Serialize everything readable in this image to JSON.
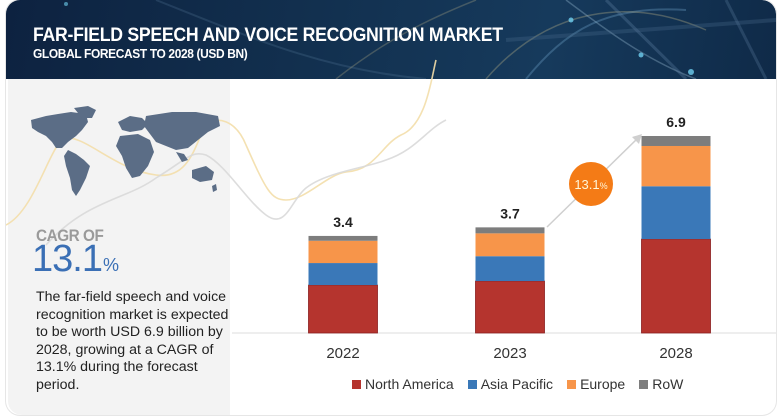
{
  "header": {
    "title": "FAR-FIELD SPEECH AND VOICE RECOGNITION MARKET",
    "subtitle": "GLOBAL FORECAST TO 2028 (USD BN)"
  },
  "left_panel": {
    "map_icon": "world-map-icon",
    "cagr_label": "CAGR OF",
    "cagr_value": "13.1",
    "cagr_unit": "%",
    "description": "The far-field speech and voice recognition market is expected to be worth USD 6.9 billion by 2028, growing at a CAGR of 13.1% during the forecast period."
  },
  "colors": {
    "north_america": "#b5342e",
    "asia_pacific": "#3a78b8",
    "europe": "#f7954a",
    "row": "#7d7d7d",
    "cagr_badge": "#f47b16",
    "header_bg": "#12304f",
    "cagr_text": "#3a6fb5"
  },
  "chart_data": {
    "type": "bar",
    "stacked": true,
    "title": "FAR-FIELD SPEECH AND VOICE RECOGNITION MARKET",
    "subtitle": "GLOBAL FORECAST TO 2028 (USD BN)",
    "xlabel": "",
    "ylabel": "",
    "categories": [
      "2022",
      "2023",
      "2028"
    ],
    "totals": [
      "3.4",
      "3.7",
      "6.9"
    ],
    "total_values": [
      3.4,
      3.7,
      6.9
    ],
    "series": [
      {
        "name": "North America",
        "color": "#b5342e",
        "values": [
          1.68,
          1.82,
          3.29
        ]
      },
      {
        "name": "Asia Pacific",
        "color": "#3a78b8",
        "values": [
          0.77,
          0.87,
          1.85
        ]
      },
      {
        "name": "Europe",
        "color": "#f7954a",
        "values": [
          0.78,
          0.8,
          1.41
        ]
      },
      {
        "name": "RoW",
        "color": "#7d7d7d",
        "values": [
          0.17,
          0.21,
          0.35
        ]
      }
    ],
    "ylim": [
      0,
      6.9
    ],
    "grid": false,
    "legend_position": "bottom",
    "annotation": {
      "label": "13.1",
      "unit": "%",
      "type": "cagr-arrow",
      "from": "2023",
      "to": "2028"
    }
  }
}
